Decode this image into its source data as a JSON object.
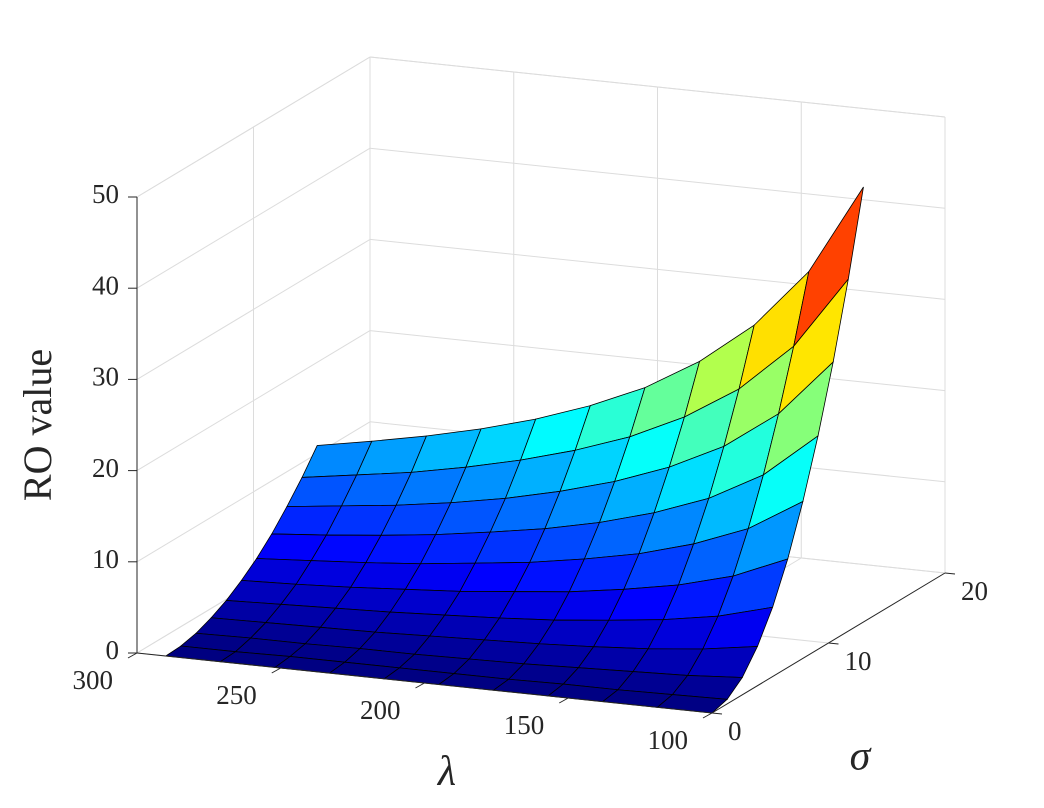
{
  "chart_data": {
    "type": "surface",
    "xlabel": "λ",
    "ylabel": "σ",
    "zlabel": "RO value",
    "x": [
      100,
      119,
      138,
      157,
      176,
      195,
      214,
      233,
      252,
      271,
      290
    ],
    "y": [
      0,
      1.3,
      2.6,
      3.9,
      5.2,
      6.5,
      7.8,
      9.1,
      10.4,
      11.7,
      13
    ],
    "z": [
      [
        0,
        0.5,
        1.9,
        4.3,
        7.6,
        11.9,
        17.2,
        23.4,
        30.5,
        38.6,
        47.7
      ],
      [
        0,
        0.4,
        1.5,
        3.4,
        6.0,
        9.4,
        13.6,
        18.5,
        24.2,
        30.6,
        37.8
      ],
      [
        0,
        0.3,
        1.3,
        2.8,
        5.0,
        7.8,
        11.3,
        15.3,
        20.0,
        25.3,
        31.3
      ],
      [
        0,
        0.3,
        1.1,
        2.4,
        4.3,
        6.7,
        9.6,
        13.1,
        17.1,
        21.6,
        26.7
      ],
      [
        0,
        0.2,
        0.9,
        2.1,
        3.7,
        5.8,
        8.4,
        11.4,
        14.9,
        18.8,
        23.2
      ],
      [
        0,
        0.2,
        0.8,
        1.9,
        3.3,
        5.2,
        7.4,
        10.1,
        13.2,
        16.7,
        20.6
      ],
      [
        0,
        0.2,
        0.7,
        1.7,
        3.0,
        4.6,
        6.7,
        9.1,
        11.8,
        15.0,
        18.5
      ],
      [
        0,
        0.2,
        0.7,
        1.5,
        2.7,
        4.2,
        6.0,
        8.2,
        10.7,
        13.6,
        16.8
      ],
      [
        0,
        0.2,
        0.6,
        1.4,
        2.5,
        3.8,
        5.5,
        7.5,
        9.8,
        12.4,
        15.4
      ],
      [
        0,
        0.1,
        0.6,
        1.3,
        2.3,
        3.5,
        5.1,
        6.9,
        9.1,
        11.5,
        14.2
      ],
      [
        0,
        0.1,
        0.5,
        1.2,
        2.1,
        3.3,
        4.7,
        6.4,
        8.4,
        10.6,
        13.1
      ]
    ],
    "xlim": [
      100,
      300
    ],
    "xticks": [
      100,
      150,
      200,
      250,
      300
    ],
    "ylim": [
      0,
      20
    ],
    "yticks": [
      0,
      10,
      20
    ],
    "zlim": [
      0,
      50
    ],
    "zticks": [
      0,
      10,
      20,
      30,
      40,
      50
    ],
    "colormap": "jet",
    "grid": true
  }
}
